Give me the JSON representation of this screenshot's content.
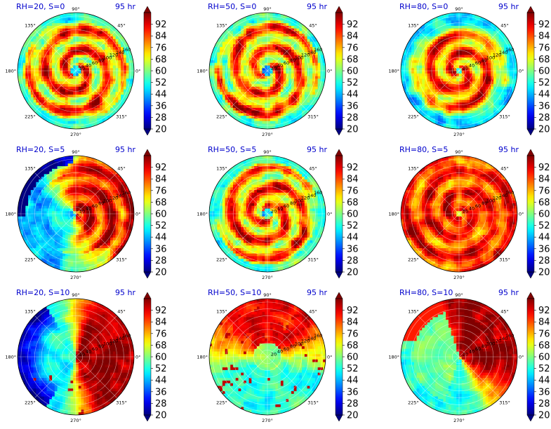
{
  "chart_data": [
    {
      "type": "heatmap",
      "panel": "RH=20, S=0",
      "title_left": "RH=20, S=0",
      "title_right": "95 hr",
      "field": "ring-high",
      "seed": 11
    },
    {
      "type": "heatmap",
      "panel": "RH=50, S=0",
      "title_left": "RH=50, S=0",
      "title_right": "95 hr",
      "field": "ring-high",
      "seed": 23
    },
    {
      "type": "heatmap",
      "panel": "RH=80, S=0",
      "title_left": "RH=80, S=0",
      "title_right": "95 hr",
      "field": "ring-mid",
      "seed": 37
    },
    {
      "type": "heatmap",
      "panel": "RH=20, S=5",
      "title_left": "RH=20, S=5",
      "title_right": "95 hr",
      "field": "sheared",
      "seed": 41
    },
    {
      "type": "heatmap",
      "panel": "RH=50, S=5",
      "title_left": "RH=50, S=5",
      "title_right": "95 hr",
      "field": "ring-high",
      "seed": 53
    },
    {
      "type": "heatmap",
      "panel": "RH=80, S=5",
      "title_left": "RH=80, S=5",
      "title_right": "95 hr",
      "field": "ring-full",
      "seed": 67
    },
    {
      "type": "heatmap",
      "panel": "RH=20, S=10",
      "title_left": "RH=20, S=10",
      "title_right": "95 hr",
      "field": "east-half",
      "seed": 71
    },
    {
      "type": "heatmap",
      "panel": "RH=50, S=10",
      "title_left": "RH=50, S=10",
      "title_right": "95 hr",
      "field": "north-band",
      "seed": 83
    },
    {
      "type": "heatmap",
      "panel": "RH=80, S=10",
      "title_left": "RH=80, S=10",
      "title_right": "95 hr",
      "field": "northeast",
      "seed": 97
    }
  ],
  "axes": {
    "angle_labels": [
      "0°",
      "45°",
      "90°",
      "135°",
      "180°",
      "225°",
      "270°",
      "315°"
    ],
    "radial_labels": [
      "20",
      "40",
      "60",
      "80",
      "100",
      "120",
      "140",
      "160"
    ],
    "rlim": [
      0,
      170
    ]
  },
  "colorbar": {
    "colormap": "jet",
    "vmin": 20,
    "vmax": 100,
    "extend": "both",
    "ticks": [
      "92",
      "84",
      "76",
      "68",
      "60",
      "52",
      "44",
      "36",
      "28",
      "20"
    ]
  }
}
